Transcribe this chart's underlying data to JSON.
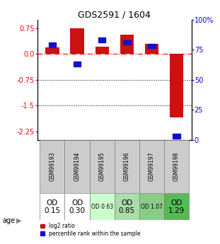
{
  "title": "GDS2591 / 1604",
  "samples": [
    "GSM99193",
    "GSM99194",
    "GSM99195",
    "GSM99196",
    "GSM99197",
    "GSM99198"
  ],
  "log2_ratio": [
    0.18,
    0.75,
    0.22,
    0.55,
    0.3,
    -1.85
  ],
  "percentile_rank": [
    79,
    63,
    83,
    81,
    78,
    3
  ],
  "age_labels": [
    "OD\n0.15",
    "OD\n0.30",
    "OD 0.63",
    "OD\n0.85",
    "OD 1.07",
    "OD\n1.29"
  ],
  "age_fontsize_large": [
    true,
    true,
    false,
    true,
    false,
    true
  ],
  "age_bg_colors": [
    "#ffffff",
    "#ffffff",
    "#ccffcc",
    "#aaddaa",
    "#88cc88",
    "#55bb55"
  ],
  "ylim_left": [
    -2.5,
    1.0
  ],
  "ylim_right": [
    0,
    100
  ],
  "yticks_left": [
    0.75,
    0.0,
    -0.75,
    -1.5,
    -2.25
  ],
  "yticks_right": [
    100,
    75,
    50,
    25,
    0
  ],
  "bar_color_red": "#cc1111",
  "bar_color_blue": "#1111cc",
  "hline_y": 0.0,
  "dotted_lines": [
    -0.75,
    -1.5
  ],
  "bar_width": 0.55,
  "legend_red": "log2 ratio",
  "legend_blue": "percentile rank within the sample",
  "background_color": "#ffffff",
  "plot_bg": "#ffffff"
}
